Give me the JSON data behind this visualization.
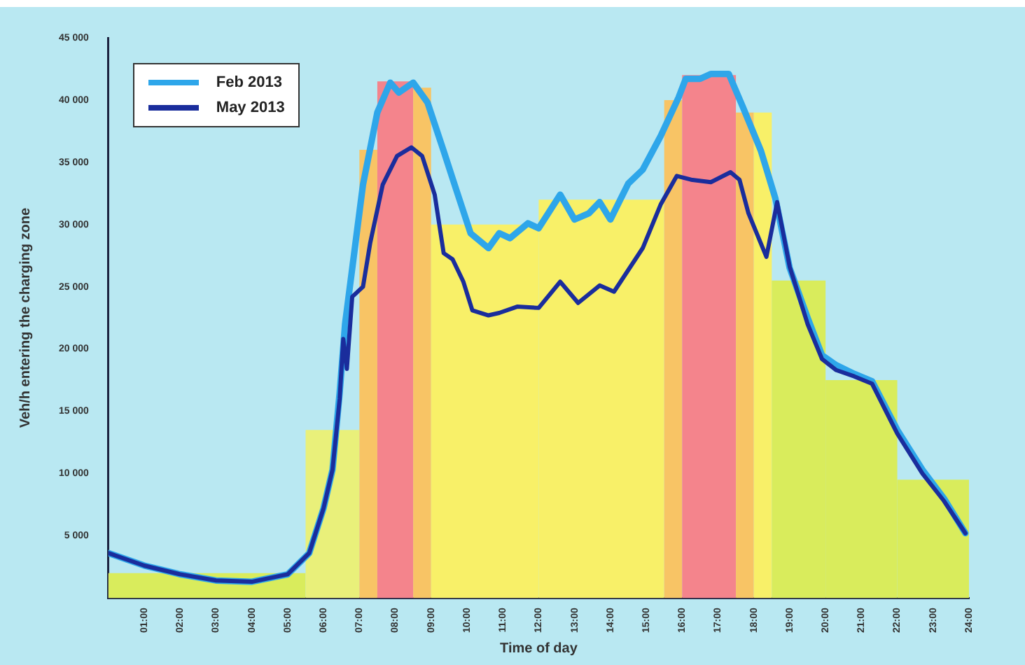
{
  "chart_data": {
    "type": "line",
    "xlabel": "Time of day",
    "ylabel": "Veh/h entering the charging zone",
    "xlim": [
      0,
      24
    ],
    "ylim": [
      0,
      45000
    ],
    "xticks": [
      {
        "value": 1,
        "label": "01:00"
      },
      {
        "value": 2,
        "label": "02:00"
      },
      {
        "value": 3,
        "label": "03:00"
      },
      {
        "value": 4,
        "label": "04:00"
      },
      {
        "value": 5,
        "label": "05:00"
      },
      {
        "value": 6,
        "label": "06:00"
      },
      {
        "value": 7,
        "label": "07:00"
      },
      {
        "value": 8,
        "label": "08:00"
      },
      {
        "value": 9,
        "label": "09:00"
      },
      {
        "value": 10,
        "label": "10:00"
      },
      {
        "value": 11,
        "label": "11:00"
      },
      {
        "value": 12,
        "label": "12:00"
      },
      {
        "value": 13,
        "label": "13:00"
      },
      {
        "value": 14,
        "label": "14:00"
      },
      {
        "value": 15,
        "label": "15:00"
      },
      {
        "value": 16,
        "label": "16:00"
      },
      {
        "value": 17,
        "label": "17:00"
      },
      {
        "value": 18,
        "label": "18:00"
      },
      {
        "value": 19,
        "label": "19:00"
      },
      {
        "value": 20,
        "label": "20:00"
      },
      {
        "value": 21,
        "label": "21:00"
      },
      {
        "value": 22,
        "label": "22:00"
      },
      {
        "value": 23,
        "label": "23:00"
      },
      {
        "value": 24,
        "label": "24:00"
      }
    ],
    "yticks": [
      {
        "value": 5000,
        "label": "5 000"
      },
      {
        "value": 10000,
        "label": "10 000"
      },
      {
        "value": 15000,
        "label": "15 000"
      },
      {
        "value": 20000,
        "label": "20 000"
      },
      {
        "value": 25000,
        "label": "25 000"
      },
      {
        "value": 30000,
        "label": "30 000"
      },
      {
        "value": 35000,
        "label": "35 000"
      },
      {
        "value": 40000,
        "label": "40 000"
      },
      {
        "value": 45000,
        "label": "45 000"
      }
    ],
    "legend": "top left",
    "grid": false,
    "marker": "none",
    "line_style": "solid",
    "series": [
      {
        "type": "histogram",
        "bins": [
          0,
          5.5,
          7,
          7.5,
          8.5,
          9,
          12,
          15.5,
          16,
          17.5,
          18,
          18.5,
          20,
          22,
          24
        ],
        "values": [
          2000,
          13500,
          36000,
          41500,
          41000,
          30000,
          32000,
          40000,
          42000,
          39000,
          39000,
          25500,
          17500,
          9500
        ],
        "colors": [
          "#d9ec5c",
          "#e9f07a",
          "#f8c465",
          "#f4848c",
          "#f8c465",
          "#f8f068",
          "#f8f068",
          "#f8c465",
          "#f4848c",
          "#f8c465",
          "#f8f068",
          "#d9ec5c",
          "#d9ec5c",
          "#d9ec5c"
        ]
      },
      {
        "name": "Feb  2013",
        "color": "#2ea6ea",
        "x": [
          0,
          1,
          2,
          3,
          4,
          5,
          5.6,
          6,
          6.25,
          6.45,
          6.6,
          7.1,
          7.5,
          7.86,
          8.1,
          8.5,
          8.9,
          9.35,
          9.7,
          10.1,
          10.6,
          10.9,
          11.2,
          11.7,
          12,
          12.6,
          13,
          13.4,
          13.7,
          14,
          14.5,
          14.9,
          15.4,
          15.9,
          16.1,
          16.5,
          16.8,
          17.3,
          17.7,
          18.2,
          18.6,
          19,
          19.5,
          19.9,
          20.3,
          20.8,
          21.3,
          22,
          22.7,
          23.3,
          23.9
        ],
        "values": [
          3600,
          2600,
          1900,
          1400,
          1300,
          1900,
          3600,
          7200,
          10300,
          16500,
          22000,
          33200,
          39000,
          41400,
          40600,
          41400,
          39800,
          35900,
          32800,
          29300,
          28100,
          29300,
          28900,
          30100,
          29700,
          32400,
          30400,
          30900,
          31800,
          30400,
          33300,
          34400,
          37100,
          40200,
          41700,
          41700,
          42100,
          42100,
          39400,
          35900,
          32100,
          26500,
          22500,
          19500,
          18700,
          18000,
          17400,
          13500,
          10300,
          8000,
          5200
        ]
      },
      {
        "name": "May  2013",
        "color": "#1a2d9c",
        "x": [
          0,
          1,
          2,
          3,
          4,
          5,
          5.6,
          6,
          6.25,
          6.45,
          6.55,
          6.65,
          6.8,
          7.1,
          7.3,
          7.65,
          8.05,
          8.45,
          8.75,
          9.1,
          9.35,
          9.6,
          9.9,
          10.15,
          10.6,
          10.9,
          11.4,
          12,
          12.6,
          13.1,
          13.7,
          14.1,
          14.9,
          15.4,
          15.85,
          16.25,
          16.8,
          17.35,
          17.6,
          17.85,
          18.35,
          18.65,
          19,
          19.5,
          19.9,
          20.3,
          20.8,
          21.3,
          22,
          22.7,
          23.3,
          23.9
        ],
        "values": [
          3600,
          2600,
          1900,
          1400,
          1300,
          1900,
          3600,
          7200,
          10300,
          16000,
          20800,
          18400,
          24200,
          25000,
          28500,
          33200,
          35500,
          36200,
          35500,
          32400,
          27700,
          27200,
          25400,
          23100,
          22700,
          22900,
          23400,
          23300,
          25400,
          23700,
          25100,
          24600,
          28100,
          31600,
          33900,
          33600,
          33400,
          34200,
          33600,
          30900,
          27400,
          31800,
          26600,
          22000,
          19200,
          18300,
          17800,
          17200,
          13200,
          10000,
          7800,
          5200
        ]
      }
    ]
  }
}
